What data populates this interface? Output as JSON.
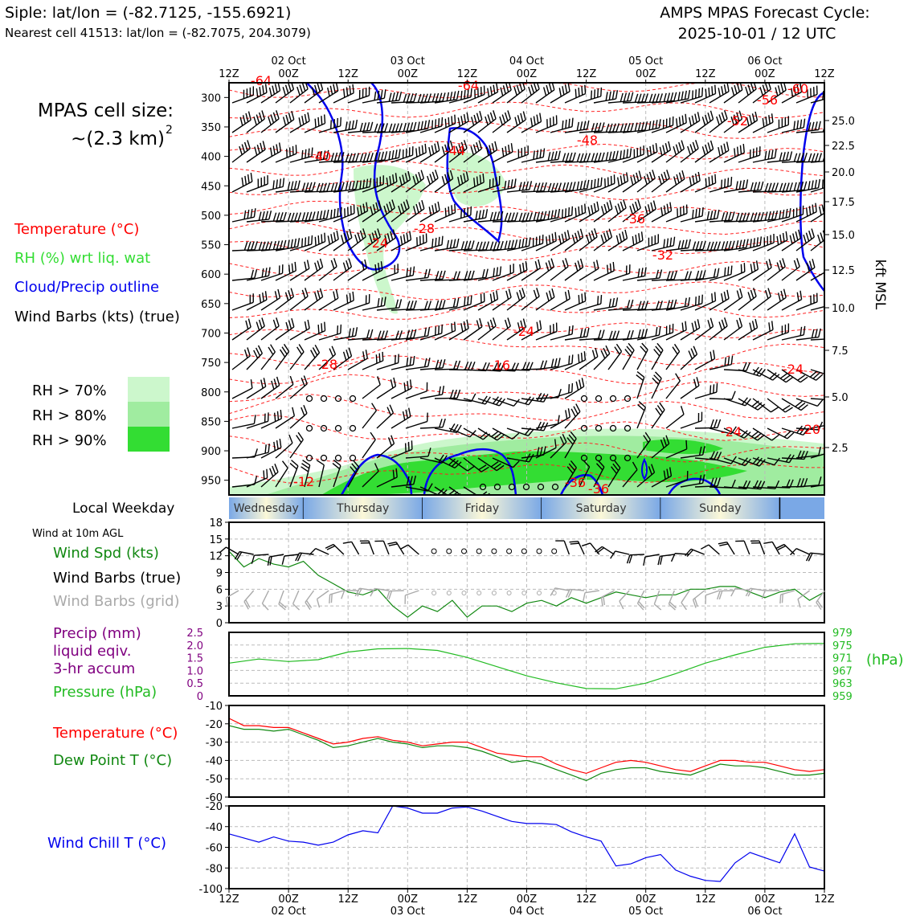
{
  "header": {
    "site": "Siple: lat/lon = (-82.7125, -155.6921)",
    "nearest": "Nearest cell 41513: lat/lon = (-82.7075, 204.3079)",
    "cycle_title": "AMPS MPAS Forecast Cycle:",
    "cycle_time": "2025-10-01 / 12 UTC"
  },
  "legend": {
    "cell_size_line1": "MPAS cell size:",
    "cell_size_line2": "~(2.3 km)",
    "cell_size_sup": "2",
    "temperature": "Temperature (°C)",
    "rh": "RH (%) wrt liq. wat",
    "cloud": "Cloud/Precip outline",
    "barbs": "Wind Barbs (kts) (true)",
    "rh70": "RH > 70%",
    "rh80": "RH > 80%",
    "rh90": "RH > 90%",
    "colors": {
      "rh70": "#ccf7cc",
      "rh80": "#a0eca0",
      "rh90": "#33dd33",
      "temp": "#ff0000",
      "cloud": "#0000ee"
    }
  },
  "time_axis": {
    "hour_labels": [
      "12Z",
      "00Z",
      "12Z",
      "00Z",
      "12Z",
      "00Z",
      "12Z",
      "00Z",
      "12Z",
      "00Z",
      "12Z"
    ],
    "date_labels": [
      "02 Oct",
      "03 Oct",
      "04 Oct",
      "05 Oct",
      "06 Oct"
    ]
  },
  "weekday": {
    "title": "Local Weekday",
    "days": [
      "Wednesday",
      "Thursday",
      "Friday",
      "Saturday",
      "Sunday"
    ]
  },
  "sub_labels": {
    "wind10m": "Wind at 10m AGL",
    "wind_spd": "Wind Spd (kts)",
    "barbs_true": "Wind Barbs (true)",
    "barbs_grid": "Wind Barbs (grid)",
    "precip1": "Precip (mm)",
    "precip2": "liquid eqiv.",
    "precip3": "3-hr accum",
    "pressure": "Pressure (hPa)",
    "hpa_unit": "(hPa)",
    "temperature": "Temperature (°C)",
    "dewpoint": "Dew Point T (°C)",
    "windchill": "Wind Chill T (°C)",
    "kft": "kft MSL"
  },
  "chart_data": [
    {
      "type": "heatmap",
      "name": "time-height cross section",
      "y_ticks": [
        "300",
        "350",
        "400",
        "450",
        "500",
        "550",
        "600",
        "650",
        "700",
        "750",
        "800",
        "850",
        "900",
        "950"
      ],
      "kft_ticks": [
        "25.0",
        "22.5",
        "20.0",
        "17.5",
        "15.0",
        "12.5",
        "10.0",
        "7.5",
        "5.0",
        "2.5"
      ],
      "temperature_labels": [
        "-64",
        "-64",
        "-60",
        "-56",
        "-52",
        "-48",
        "-44",
        "-40",
        "-36",
        "-32",
        "-28",
        "-24",
        "-24",
        "-24",
        "-24",
        "-20",
        "-16",
        "-12",
        "-28",
        "-36",
        "-36"
      ]
    },
    {
      "type": "line",
      "name": "Wind Spd (kts)",
      "y_ticks": [
        "0",
        "3",
        "6",
        "9",
        "12",
        "15",
        "18"
      ],
      "ylim": [
        0,
        18
      ],
      "x": [
        0,
        3,
        6,
        9,
        12,
        15,
        18,
        21,
        24,
        27,
        30,
        33,
        36,
        39,
        42,
        45,
        48,
        51,
        54,
        57,
        60,
        63,
        66,
        69,
        72,
        75,
        78,
        81,
        84,
        87,
        90,
        93,
        96,
        99,
        102,
        105,
        108,
        111,
        114,
        117,
        120
      ],
      "values": [
        12.8,
        10,
        11.5,
        10.5,
        10,
        11,
        8.5,
        7,
        5.5,
        5,
        6,
        3,
        1,
        3,
        2,
        4,
        1,
        3,
        3,
        2,
        3.5,
        4,
        3,
        4.5,
        3.5,
        4.5,
        5.5,
        5,
        4.5,
        5,
        5,
        6,
        6,
        6.5,
        6.5,
        5.5,
        4.5,
        5.5,
        6,
        4,
        5.5
      ]
    },
    {
      "type": "line",
      "name": "Pressure (hPa)",
      "left_ticks": [
        "0",
        "0.5",
        "1.0",
        "1.5",
        "2.0",
        "2.5"
      ],
      "right_ticks": [
        "959",
        "963",
        "967",
        "971",
        "975",
        "979"
      ],
      "ylim": [
        959,
        979
      ],
      "x": [
        0,
        6,
        12,
        18,
        24,
        30,
        36,
        42,
        48,
        54,
        60,
        66,
        72,
        78,
        84,
        90,
        96,
        102,
        108,
        114,
        120
      ],
      "values": [
        969.3,
        970.6,
        969.8,
        970.4,
        972.8,
        973.8,
        973.9,
        973.3,
        971.1,
        968.2,
        965.3,
        963.1,
        961.3,
        961.2,
        963.0,
        966.0,
        969.3,
        971.9,
        974.3,
        975.4,
        975.5
      ]
    },
    {
      "type": "line",
      "name": "Temperature / Dew Point",
      "y_ticks": [
        "-10",
        "-20",
        "-30",
        "-40",
        "-50",
        "-60"
      ],
      "ylim": [
        -60,
        -10
      ],
      "x": [
        0,
        3,
        6,
        9,
        12,
        15,
        18,
        21,
        24,
        27,
        30,
        33,
        36,
        39,
        42,
        45,
        48,
        51,
        54,
        57,
        60,
        63,
        66,
        69,
        72,
        75,
        78,
        81,
        84,
        87,
        90,
        93,
        96,
        99,
        102,
        105,
        108,
        111,
        114,
        117,
        120
      ],
      "series": [
        {
          "name": "Temperature",
          "values": [
            -17,
            -21,
            -21,
            -22,
            -22,
            -25,
            -28,
            -31,
            -30,
            -28,
            -27,
            -29,
            -30,
            -32,
            -31,
            -30,
            -30,
            -33,
            -36,
            -37,
            -38,
            -38,
            -42,
            -45,
            -47,
            -44,
            -41,
            -40,
            -41,
            -43,
            -45,
            -46,
            -43,
            -40,
            -40,
            -41,
            -41,
            -43,
            -45,
            -46,
            -45
          ]
        },
        {
          "name": "Dew Point",
          "values": [
            -21,
            -23,
            -23,
            -24,
            -23,
            -26,
            -29,
            -33,
            -32,
            -30,
            -28,
            -30,
            -31,
            -33,
            -32,
            -32,
            -33,
            -35,
            -38,
            -41,
            -40,
            -42,
            -45,
            -48,
            -51,
            -47,
            -45,
            -44,
            -44,
            -46,
            -47,
            -48,
            -45,
            -42,
            -43,
            -43,
            -44,
            -46,
            -48,
            -48,
            -47
          ]
        }
      ]
    },
    {
      "type": "line",
      "name": "Wind Chill T (°C)",
      "y_ticks": [
        "-20",
        "-40",
        "-60",
        "-80",
        "-100"
      ],
      "ylim": [
        -100,
        -20
      ],
      "x": [
        0,
        3,
        6,
        9,
        12,
        15,
        18,
        21,
        24,
        27,
        30,
        33,
        36,
        39,
        42,
        45,
        48,
        51,
        54,
        57,
        60,
        63,
        66,
        69,
        72,
        75,
        78,
        81,
        84,
        87,
        90,
        93,
        96,
        99,
        102,
        105,
        108,
        111,
        114,
        117,
        120
      ],
      "values": [
        -47,
        -51,
        -55,
        -50,
        -54,
        -55,
        -58,
        -55,
        -48,
        -44,
        -46,
        -20,
        -22,
        -27,
        -27,
        -22,
        -21,
        -25,
        -30,
        -35,
        -37,
        -37,
        -38,
        -45,
        -50,
        -54,
        -78,
        -76,
        -70,
        -67,
        -82,
        -88,
        -92,
        -93,
        -75,
        -65,
        -70,
        -75,
        -47,
        -79,
        -83
      ]
    }
  ]
}
